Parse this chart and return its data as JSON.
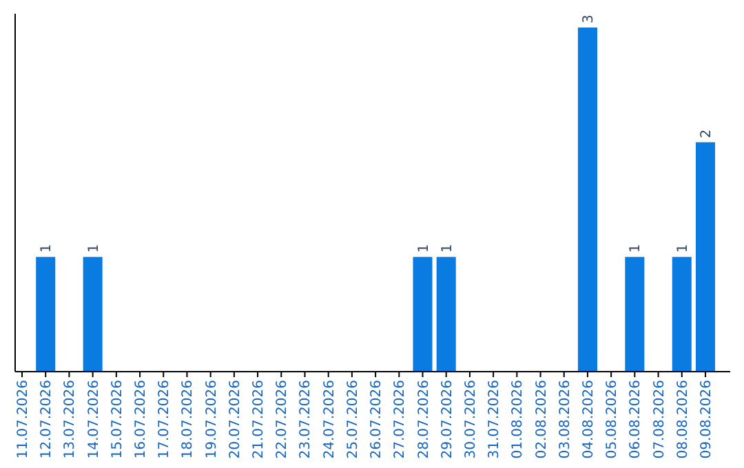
{
  "chart_data": {
    "type": "bar",
    "categories": [
      "11.07.2026",
      "12.07.2026",
      "13.07.2026",
      "14.07.2026",
      "15.07.2026",
      "16.07.2026",
      "17.07.2026",
      "18.07.2026",
      "19.07.2026",
      "20.07.2026",
      "21.07.2026",
      "22.07.2026",
      "23.07.2026",
      "24.07.2026",
      "25.07.2026",
      "26.07.2026",
      "27.07.2026",
      "28.07.2026",
      "29.07.2026",
      "30.07.2026",
      "31.07.2026",
      "01.08.2026",
      "02.08.2026",
      "03.08.2026",
      "04.08.2026",
      "05.08.2026",
      "06.08.2026",
      "07.08.2026",
      "08.08.2026",
      "09.08.2026"
    ],
    "values": [
      0,
      1,
      0,
      1,
      0,
      0,
      0,
      0,
      0,
      0,
      0,
      0,
      0,
      0,
      0,
      0,
      0,
      1,
      1,
      0,
      0,
      0,
      0,
      0,
      3,
      0,
      1,
      0,
      1,
      2
    ],
    "value_labels": [
      null,
      "1",
      null,
      "1",
      null,
      null,
      null,
      null,
      null,
      null,
      null,
      null,
      null,
      null,
      null,
      null,
      null,
      "1",
      "1",
      null,
      null,
      null,
      null,
      null,
      "3",
      null,
      "1",
      null,
      "1",
      "2"
    ],
    "color": "#0a7be0",
    "tick_labels": "x"
  }
}
